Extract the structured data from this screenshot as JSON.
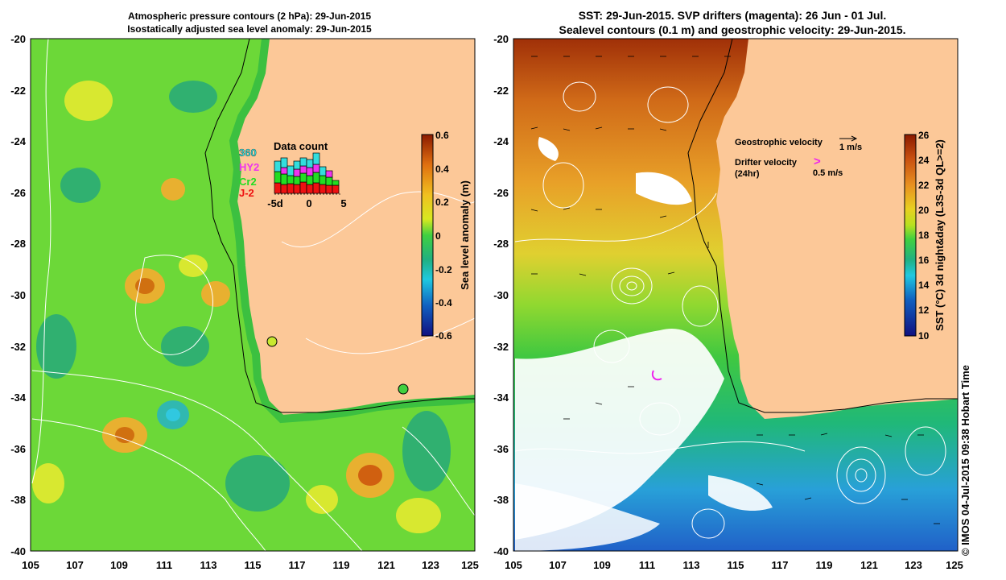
{
  "left_map": {
    "title_line1": "Atmospheric pressure contours (2 hPa): 29-Jun-2015",
    "title_line2": "Isostatically adjusted sea level anomaly: 29-Jun-2015",
    "lat_ticks": [
      "-20",
      "-22",
      "-24",
      "-26",
      "-28",
      "-30",
      "-32",
      "-34",
      "-36",
      "-38",
      "-40"
    ],
    "lon_ticks": [
      "105",
      "107",
      "109",
      "111",
      "113",
      "115",
      "117",
      "119",
      "121",
      "123",
      "125"
    ],
    "colorbar": {
      "label": "Sea level anomaly (m)",
      "ticks": [
        "0.6",
        "0.4",
        "0.2",
        "0",
        "-0.2",
        "-0.4",
        "-0.6"
      ]
    },
    "data_count": {
      "title": "Data count",
      "satellites": [
        {
          "name": "360",
          "color": "#33dddd"
        },
        {
          "name": "HY2",
          "color": "#ee33ee"
        },
        {
          "name": "Cr2",
          "color": "#22dd22"
        },
        {
          "name": "J-2",
          "color": "#ee1111"
        }
      ],
      "x_ticks": [
        "-5d",
        "0",
        "5"
      ]
    }
  },
  "right_map": {
    "title_line1": "SST: 29-Jun-2015. SVP drifters (magenta): 26 Jun - 01 Jul.",
    "title_line2": "Sealevel contours (0.1 m) and geostrophic velocity: 29-Jun-2015.",
    "lat_ticks": [
      "-20",
      "-22",
      "-24",
      "-26",
      "-28",
      "-30",
      "-32",
      "-34",
      "-36",
      "-38",
      "-40"
    ],
    "lon_ticks": [
      "105",
      "107",
      "109",
      "111",
      "113",
      "115",
      "117",
      "119",
      "121",
      "123",
      "125"
    ],
    "legend": {
      "geostrophic_label": "Geostrophic velocity",
      "geostrophic_scale": "1 m/s",
      "drifter_label": "Drifter velocity",
      "drifter_sublabel": "(24hr)",
      "drifter_scale": "0.5 m/s",
      "drifter_symbol": ">"
    },
    "colorbar": {
      "label": "SST (°C) 3d night&day (L3S-3d QL>=2)",
      "ticks": [
        "26",
        "24",
        "22",
        "20",
        "18",
        "16",
        "14",
        "12",
        "10"
      ]
    }
  },
  "credit": "© IMOS 04-Jul-2015 09:38 Hobart Time",
  "colors": {
    "land": "#fcc898",
    "drifter": "#ee22ee",
    "coast_contour": "#000000"
  }
}
